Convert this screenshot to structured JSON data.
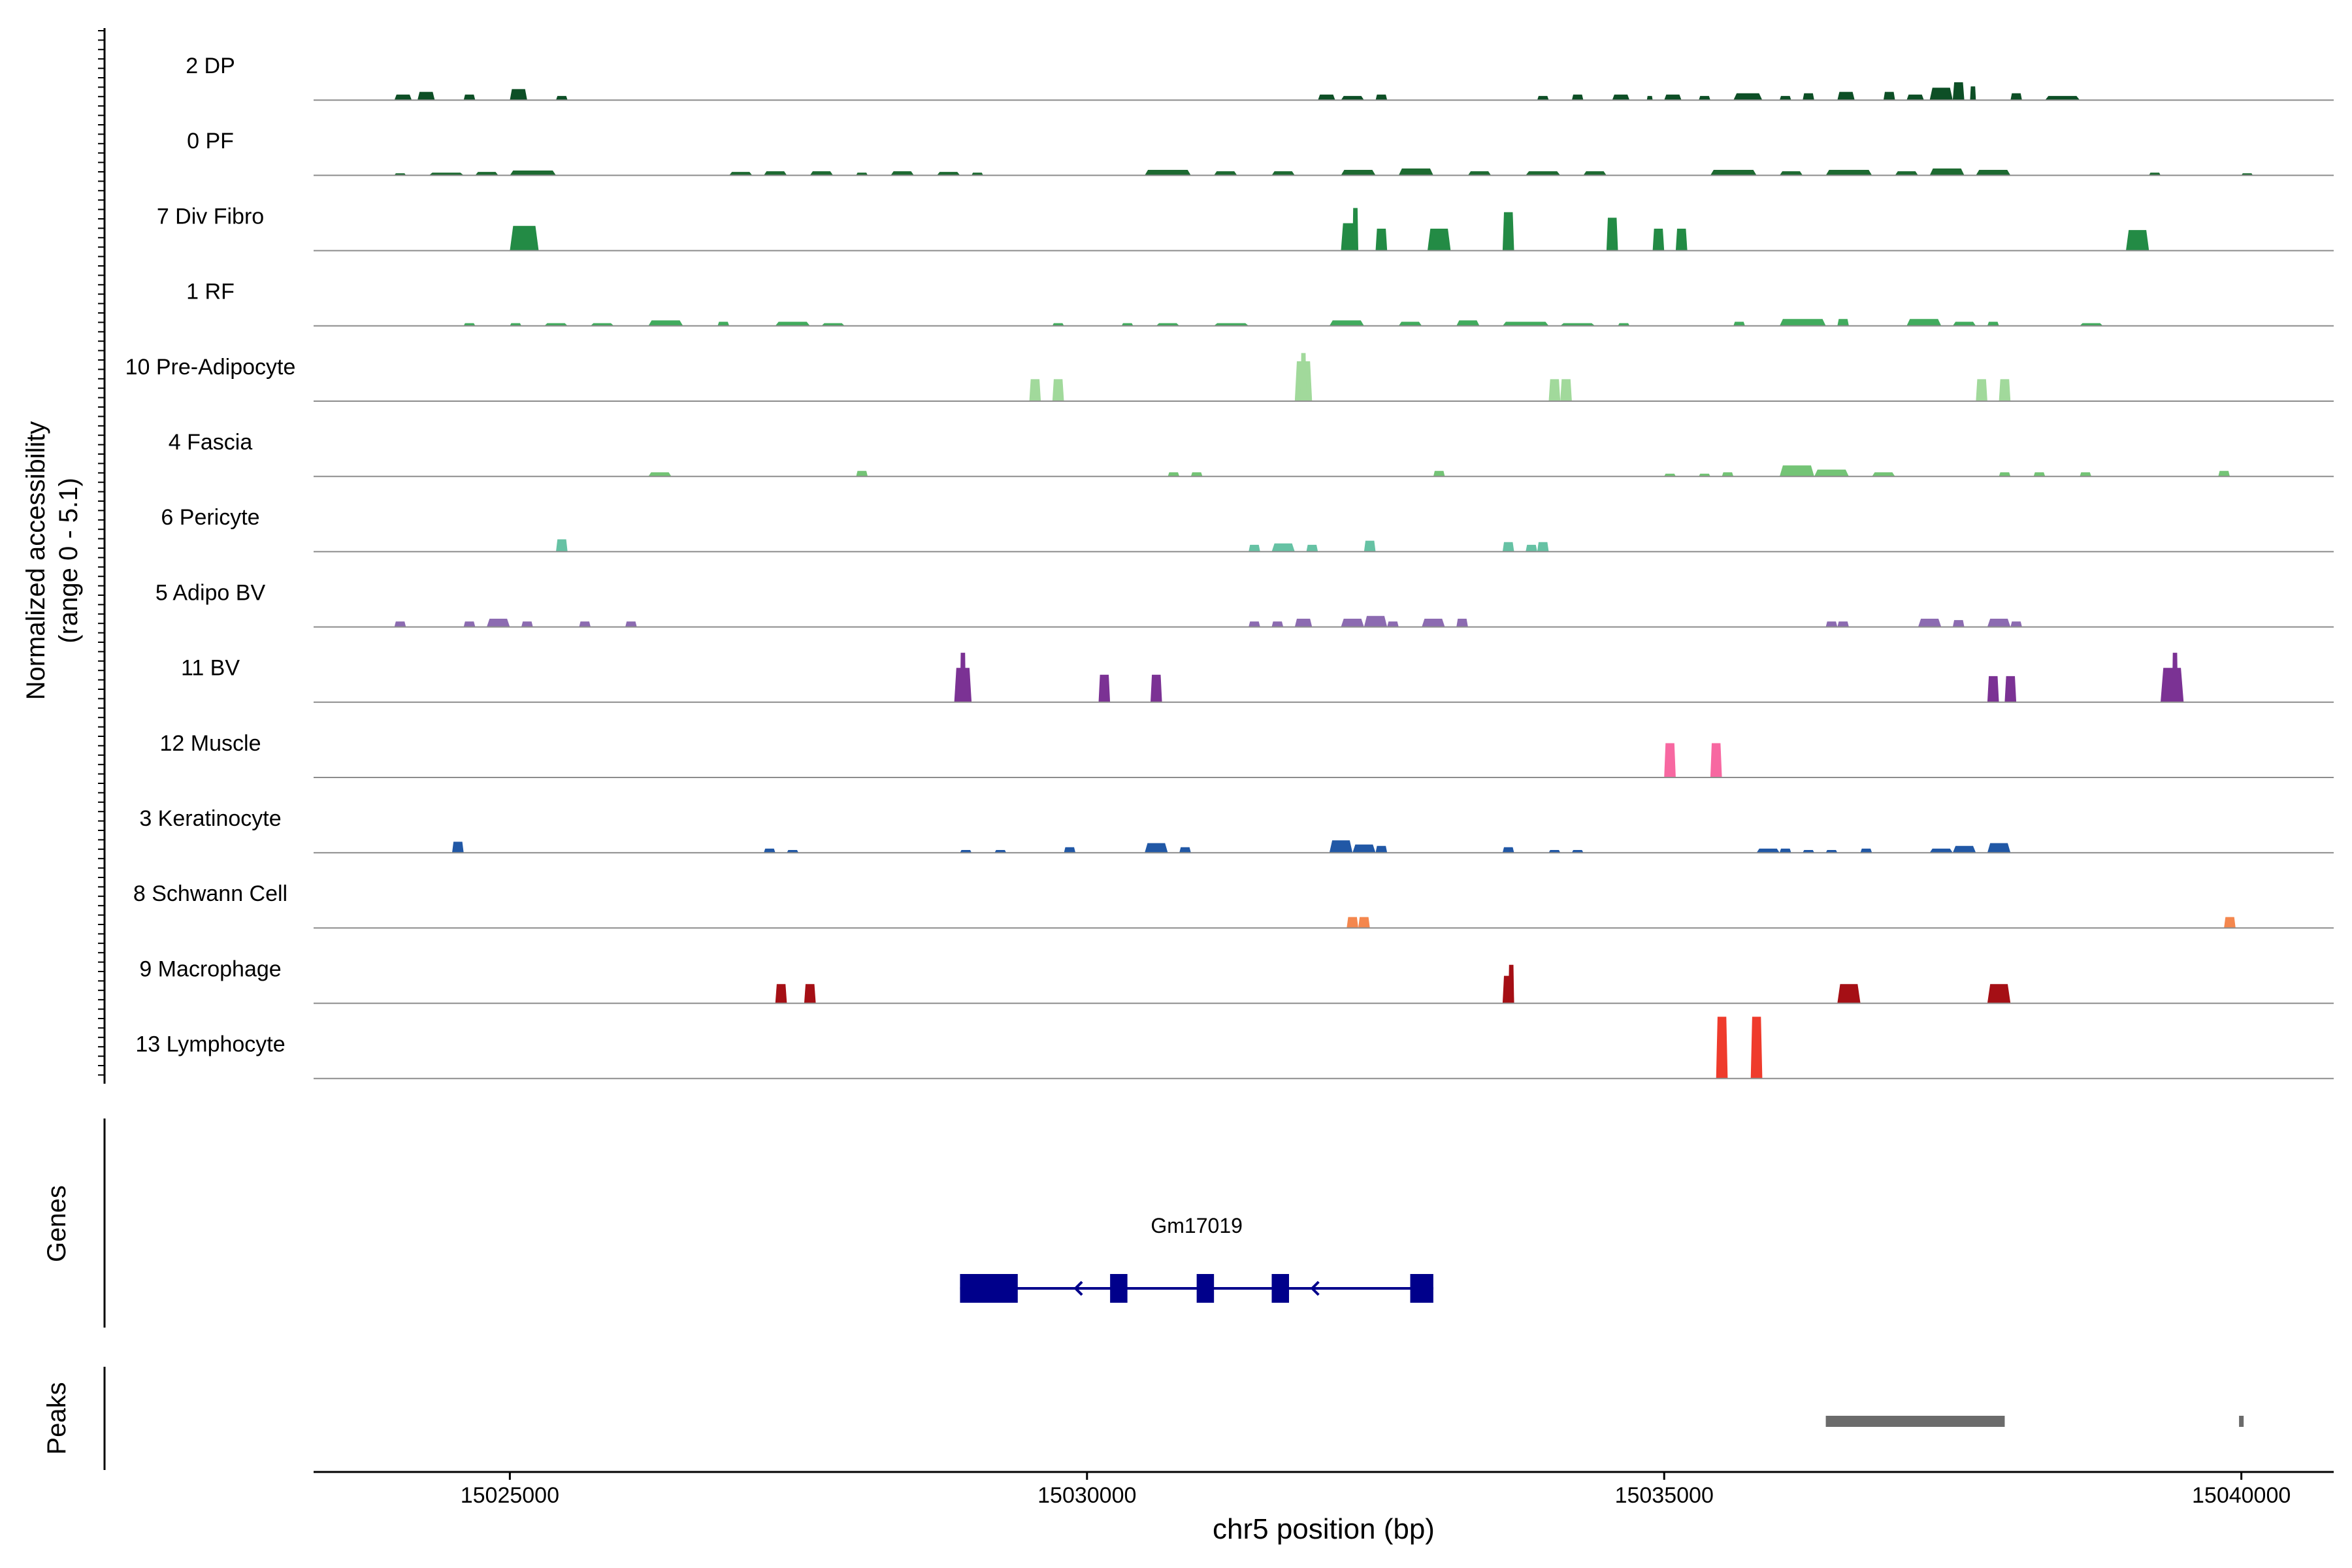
{
  "chart_data": {
    "type": "area",
    "subtype": "genome-coverage-track",
    "region": "chr5",
    "xlabel": "chr5 position (bp)",
    "xlim": [
      15023300,
      15040800
    ],
    "xticks": [
      15025000,
      15030000,
      15035000,
      15040000
    ],
    "xtick_labels": [
      "15025000",
      "15030000",
      "15035000",
      "15040000"
    ],
    "ylabel_line1": "Normalized accessibility",
    "ylabel_line2": "(range 0 - 5.1)",
    "ylim": [
      0,
      5.1
    ],
    "grid": false,
    "legend": "none",
    "tracks": [
      {
        "name": "2 DP",
        "color": "#0d4f26",
        "peaks": [
          [
            15024000,
            15024150,
            0.4
          ],
          [
            15024200,
            15024350,
            0.6
          ],
          [
            15024600,
            15024700,
            0.4
          ],
          [
            15025000,
            15025150,
            0.8
          ],
          [
            15025400,
            15025500,
            0.3
          ],
          [
            15032000,
            15032150,
            0.4
          ],
          [
            15032200,
            15032400,
            0.3
          ],
          [
            15032500,
            15032600,
            0.4
          ],
          [
            15033900,
            15034000,
            0.3
          ],
          [
            15034200,
            15034300,
            0.4
          ],
          [
            15034550,
            15034700,
            0.4
          ],
          [
            15034850,
            15034900,
            0.3
          ],
          [
            15035000,
            15035150,
            0.4
          ],
          [
            15035300,
            15035400,
            0.3
          ],
          [
            15035600,
            15035850,
            0.5
          ],
          [
            15036000,
            15036100,
            0.3
          ],
          [
            15036200,
            15036300,
            0.5
          ],
          [
            15036500,
            15036650,
            0.6
          ],
          [
            15036900,
            15037000,
            0.6
          ],
          [
            15037100,
            15037250,
            0.4
          ],
          [
            15037300,
            15037500,
            0.9
          ],
          [
            15037500,
            15037600,
            1.3
          ],
          [
            15037650,
            15037700,
            1.0
          ],
          [
            15038000,
            15038100,
            0.5
          ],
          [
            15038300,
            15038600,
            0.3
          ]
        ]
      },
      {
        "name": "0 PF",
        "color": "#1d6a31",
        "peaks": [
          [
            15024000,
            15024100,
            0.15
          ],
          [
            15024300,
            15024600,
            0.2
          ],
          [
            15024700,
            15024900,
            0.25
          ],
          [
            15025000,
            15025400,
            0.35
          ],
          [
            15026900,
            15027100,
            0.25
          ],
          [
            15027200,
            15027400,
            0.3
          ],
          [
            15027600,
            15027800,
            0.3
          ],
          [
            15028000,
            15028100,
            0.2
          ],
          [
            15028300,
            15028500,
            0.3
          ],
          [
            15028700,
            15028900,
            0.25
          ],
          [
            15029000,
            15029100,
            0.2
          ],
          [
            15030500,
            15030900,
            0.4
          ],
          [
            15031100,
            15031300,
            0.3
          ],
          [
            15031600,
            15031800,
            0.3
          ],
          [
            15032200,
            15032500,
            0.4
          ],
          [
            15032700,
            15033000,
            0.5
          ],
          [
            15033300,
            15033500,
            0.3
          ],
          [
            15033800,
            15034100,
            0.3
          ],
          [
            15034300,
            15034500,
            0.3
          ],
          [
            15035400,
            15035800,
            0.4
          ],
          [
            15036000,
            15036200,
            0.3
          ],
          [
            15036400,
            15036800,
            0.4
          ],
          [
            15037000,
            15037200,
            0.3
          ],
          [
            15037300,
            15037600,
            0.5
          ],
          [
            15037700,
            15038000,
            0.4
          ],
          [
            15039200,
            15039300,
            0.2
          ],
          [
            15040000,
            15040100,
            0.15
          ]
        ]
      },
      {
        "name": "7 Div Fibro",
        "color": "#238b45",
        "peaks": [
          [
            15025000,
            15025250,
            1.8
          ],
          [
            15032200,
            15032350,
            2.0
          ],
          [
            15032300,
            15032350,
            3.1
          ],
          [
            15032500,
            15032600,
            1.6
          ],
          [
            15032950,
            15033150,
            1.6
          ],
          [
            15033600,
            15033700,
            2.8
          ],
          [
            15034500,
            15034600,
            2.4
          ],
          [
            15034900,
            15035000,
            1.6
          ],
          [
            15035100,
            15035200,
            1.6
          ],
          [
            15039000,
            15039200,
            1.5
          ]
        ]
      },
      {
        "name": "1 RF",
        "color": "#41ab5d",
        "peaks": [
          [
            15024600,
            15024700,
            0.2
          ],
          [
            15025000,
            15025100,
            0.2
          ],
          [
            15025300,
            15025500,
            0.2
          ],
          [
            15025700,
            15025900,
            0.2
          ],
          [
            15026200,
            15026500,
            0.4
          ],
          [
            15026800,
            15026900,
            0.3
          ],
          [
            15027300,
            15027600,
            0.3
          ],
          [
            15027700,
            15027900,
            0.2
          ],
          [
            15029700,
            15029800,
            0.2
          ],
          [
            15030300,
            15030400,
            0.2
          ],
          [
            15030600,
            15030800,
            0.2
          ],
          [
            15031100,
            15031400,
            0.2
          ],
          [
            15032100,
            15032400,
            0.4
          ],
          [
            15032700,
            15032900,
            0.3
          ],
          [
            15033200,
            15033400,
            0.4
          ],
          [
            15033600,
            15034000,
            0.3
          ],
          [
            15034100,
            15034400,
            0.2
          ],
          [
            15034600,
            15034700,
            0.2
          ],
          [
            15035600,
            15035700,
            0.3
          ],
          [
            15036000,
            15036400,
            0.5
          ],
          [
            15036500,
            15036600,
            0.5
          ],
          [
            15037100,
            15037400,
            0.5
          ],
          [
            15037500,
            15037700,
            0.3
          ],
          [
            15037800,
            15037900,
            0.3
          ],
          [
            15038600,
            15038800,
            0.2
          ]
        ]
      },
      {
        "name": "10 Pre-Adipocyte",
        "color": "#a1d99b",
        "peaks": [
          [
            15029500,
            15029600,
            1.6
          ],
          [
            15029700,
            15029800,
            1.6
          ],
          [
            15031800,
            15031950,
            2.9
          ],
          [
            15031850,
            15031900,
            3.5
          ],
          [
            15034000,
            15034100,
            1.6
          ],
          [
            15034100,
            15034200,
            1.6
          ],
          [
            15037700,
            15037800,
            1.6
          ],
          [
            15037900,
            15038000,
            1.6
          ]
        ]
      },
      {
        "name": "4 Fascia",
        "color": "#74c476",
        "peaks": [
          [
            15026200,
            15026400,
            0.3
          ],
          [
            15028000,
            15028100,
            0.4
          ],
          [
            15030700,
            15030800,
            0.3
          ],
          [
            15030900,
            15031000,
            0.3
          ],
          [
            15033000,
            15033100,
            0.4
          ],
          [
            15035000,
            15035100,
            0.2
          ],
          [
            15035300,
            15035400,
            0.2
          ],
          [
            15035500,
            15035600,
            0.3
          ],
          [
            15036000,
            15036300,
            0.8
          ],
          [
            15036300,
            15036600,
            0.5
          ],
          [
            15036800,
            15037000,
            0.3
          ],
          [
            15037900,
            15038000,
            0.3
          ],
          [
            15038200,
            15038300,
            0.3
          ],
          [
            15038600,
            15038700,
            0.3
          ],
          [
            15039800,
            15039900,
            0.4
          ]
        ]
      },
      {
        "name": "6 Pericyte",
        "color": "#66c2a4",
        "peaks": [
          [
            15025400,
            15025500,
            0.9
          ],
          [
            15031400,
            15031500,
            0.5
          ],
          [
            15031600,
            15031800,
            0.6
          ],
          [
            15031900,
            15032000,
            0.5
          ],
          [
            15032400,
            15032500,
            0.8
          ],
          [
            15033600,
            15033700,
            0.7
          ],
          [
            15033800,
            15033900,
            0.5
          ],
          [
            15033900,
            15034000,
            0.7
          ]
        ]
      },
      {
        "name": "5 Adipo BV",
        "color": "#8c6bb1",
        "peaks": [
          [
            15024000,
            15024100,
            0.4
          ],
          [
            15024600,
            15024700,
            0.4
          ],
          [
            15024800,
            15025000,
            0.6
          ],
          [
            15025100,
            15025200,
            0.4
          ],
          [
            15025600,
            15025700,
            0.4
          ],
          [
            15026000,
            15026100,
            0.4
          ],
          [
            15031400,
            15031500,
            0.4
          ],
          [
            15031600,
            15031700,
            0.4
          ],
          [
            15031800,
            15031950,
            0.6
          ],
          [
            15032200,
            15032400,
            0.6
          ],
          [
            15032400,
            15032600,
            0.8
          ],
          [
            15032600,
            15032700,
            0.4
          ],
          [
            15032900,
            15033100,
            0.6
          ],
          [
            15033200,
            15033300,
            0.6
          ],
          [
            15036400,
            15036500,
            0.4
          ],
          [
            15036500,
            15036600,
            0.4
          ],
          [
            15037200,
            15037400,
            0.6
          ],
          [
            15037500,
            15037600,
            0.5
          ],
          [
            15037800,
            15038000,
            0.6
          ],
          [
            15038000,
            15038100,
            0.4
          ]
        ]
      },
      {
        "name": "11 BV",
        "color": "#7b3294",
        "peaks": [
          [
            15028850,
            15029000,
            2.5
          ],
          [
            15028900,
            15028950,
            3.6
          ],
          [
            15030100,
            15030200,
            2.0
          ],
          [
            15030550,
            15030650,
            2.0
          ],
          [
            15037800,
            15037900,
            1.9
          ],
          [
            15037950,
            15038050,
            1.9
          ],
          [
            15039300,
            15039500,
            2.5
          ],
          [
            15039400,
            15039450,
            3.6
          ]
        ]
      },
      {
        "name": "12 Muscle",
        "color": "#f768a1",
        "peaks": [
          [
            15035000,
            15035100,
            2.5
          ],
          [
            15035400,
            15035500,
            2.5
          ]
        ]
      },
      {
        "name": "3 Keratinocyte",
        "color": "#2158a6",
        "peaks": [
          [
            15024500,
            15024600,
            0.8
          ],
          [
            15027200,
            15027300,
            0.3
          ],
          [
            15027400,
            15027500,
            0.2
          ],
          [
            15028900,
            15029000,
            0.2
          ],
          [
            15029200,
            15029300,
            0.2
          ],
          [
            15029800,
            15029900,
            0.4
          ],
          [
            15030500,
            15030700,
            0.7
          ],
          [
            15030800,
            15030900,
            0.4
          ],
          [
            15032100,
            15032300,
            0.9
          ],
          [
            15032300,
            15032500,
            0.6
          ],
          [
            15032500,
            15032600,
            0.5
          ],
          [
            15033600,
            15033700,
            0.4
          ],
          [
            15034000,
            15034100,
            0.2
          ],
          [
            15034200,
            15034300,
            0.2
          ],
          [
            15035800,
            15036000,
            0.3
          ],
          [
            15036000,
            15036100,
            0.3
          ],
          [
            15036200,
            15036300,
            0.2
          ],
          [
            15036400,
            15036500,
            0.2
          ],
          [
            15036700,
            15036800,
            0.3
          ],
          [
            15037300,
            15037500,
            0.3
          ],
          [
            15037500,
            15037700,
            0.5
          ],
          [
            15037800,
            15038000,
            0.7
          ]
        ]
      },
      {
        "name": "8 Schwann Cell",
        "color": "#f4874e",
        "peaks": [
          [
            15032250,
            15032350,
            0.8
          ],
          [
            15032350,
            15032450,
            0.8
          ],
          [
            15039850,
            15039950,
            0.8
          ]
        ]
      },
      {
        "name": "9 Macrophage",
        "color": "#a50f15",
        "peaks": [
          [
            15027300,
            15027400,
            1.4
          ],
          [
            15027550,
            15027650,
            1.4
          ],
          [
            15033600,
            15033700,
            2.0
          ],
          [
            15033650,
            15033700,
            2.8
          ],
          [
            15036500,
            15036700,
            1.4
          ],
          [
            15037800,
            15038000,
            1.4
          ]
        ]
      },
      {
        "name": "13 Lymphocyte",
        "color": "#ef3b2c",
        "peaks": [
          [
            15035450,
            15035550,
            4.5
          ],
          [
            15035750,
            15035850,
            4.5
          ]
        ]
      }
    ],
    "genes_label": "Genes",
    "genes": [
      {
        "name": "Gm17019",
        "strand": "-",
        "start": 15028900,
        "end": 15033000,
        "color": "#00008b",
        "exons": [
          [
            15028900,
            15029400
          ],
          [
            15030200,
            15030350
          ],
          [
            15030950,
            15031100
          ],
          [
            15031600,
            15031750
          ],
          [
            15032800,
            15033000
          ]
        ],
        "arrows": [
          15029900,
          15031950
        ]
      }
    ],
    "peaks_label": "Peaks",
    "peak_regions": [
      [
        15036400,
        15037950
      ],
      [
        15039980,
        15040020
      ]
    ],
    "peak_color": "#6b6b6b"
  }
}
